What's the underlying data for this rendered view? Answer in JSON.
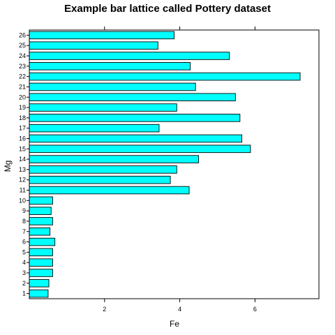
{
  "chart_data": {
    "type": "bar",
    "orientation": "horizontal",
    "title": "Example bar lattice called Pottery dataset",
    "xlabel": "Fe",
    "ylabel": "Mg",
    "xlim": [
      0,
      7.7
    ],
    "xticks": [
      2,
      4,
      6
    ],
    "categories": [
      "1",
      "2",
      "3",
      "4",
      "5",
      "6",
      "7",
      "8",
      "9",
      "10",
      "11",
      "12",
      "13",
      "14",
      "15",
      "16",
      "17",
      "18",
      "19",
      "20",
      "21",
      "22",
      "23",
      "24",
      "25",
      "26"
    ],
    "values": [
      0.5,
      0.52,
      0.62,
      0.62,
      0.62,
      0.68,
      0.55,
      0.62,
      0.58,
      0.62,
      4.25,
      3.75,
      3.92,
      4.5,
      5.88,
      5.65,
      3.45,
      5.6,
      3.92,
      5.48,
      4.42,
      7.2,
      4.28,
      5.32,
      3.42,
      3.85
    ],
    "bar_color": "#00ffff",
    "grid": false,
    "legend": "none"
  }
}
